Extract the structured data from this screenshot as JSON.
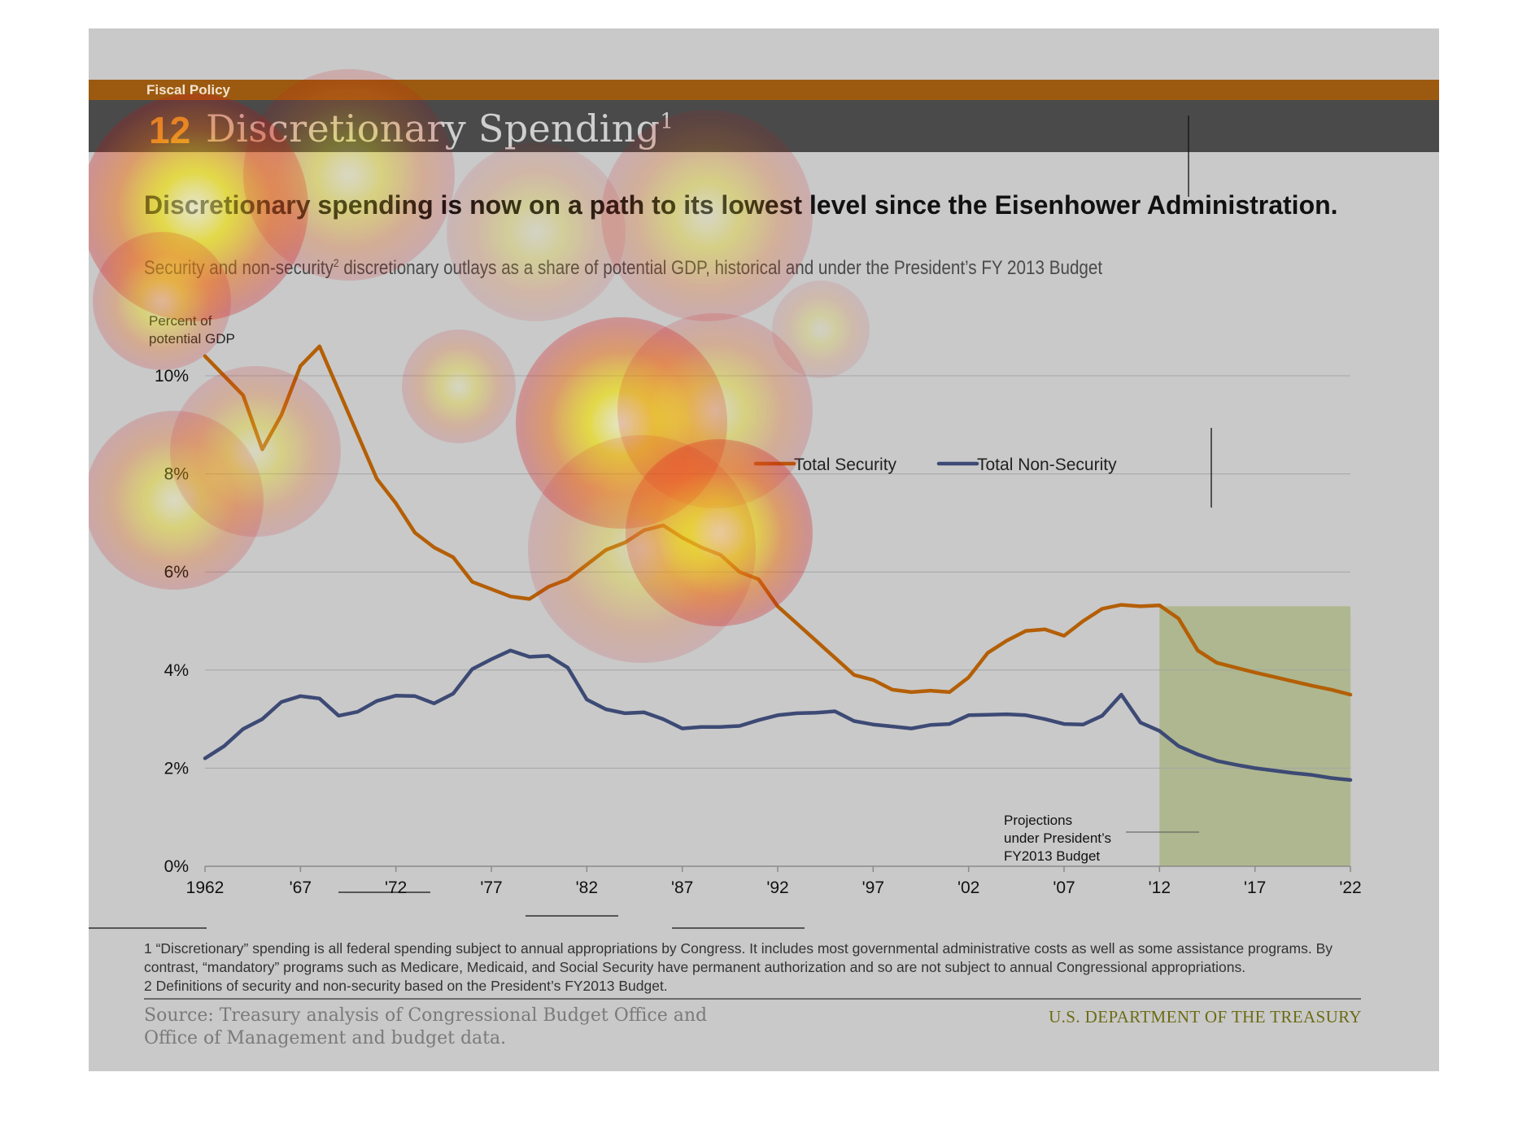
{
  "header": {
    "section": "Fiscal Policy",
    "number": "12",
    "title": "Discretionary Spending",
    "title_sup": "1"
  },
  "headline": "Discretionary spending is now on a path to its lowest level since the Eisenhower Administration.",
  "subtitle": {
    "part1": "Security and non-security",
    "sup": "2",
    "part2": " discretionary outlays as a share of potential GDP, historical and under the President’s FY 2013 Budget"
  },
  "colors": {
    "security": "#b45f06",
    "non_security": "#3d4a75",
    "projection_shade": "#aeb78f",
    "topbar": "#9c5a10",
    "titlebar": "#4a4a4a"
  },
  "chart_data": {
    "type": "line",
    "ylabel": "Percent of potential GDP",
    "ylim": [
      0,
      10
    ],
    "yticks": [
      0,
      2,
      4,
      6,
      8,
      10
    ],
    "ytick_labels": [
      "0%",
      "2%",
      "4%",
      "6%",
      "8%",
      "10%"
    ],
    "xlim": [
      1962,
      2022
    ],
    "xticks": [
      1962,
      1967,
      1972,
      1977,
      1982,
      1987,
      1992,
      1997,
      2002,
      2007,
      2012,
      2017,
      2022
    ],
    "xtick_labels": [
      "1962",
      "'67",
      "'72",
      "'77",
      "'82",
      "'87",
      "'92",
      "'97",
      "'02",
      "'07",
      "'12",
      "'17",
      "'22"
    ],
    "grid": "horizontal",
    "legend": "top-right",
    "projection": {
      "start": 2012,
      "end": 2022,
      "label": [
        "Projections",
        "under President’s",
        "FY2013 Budget"
      ]
    },
    "series": [
      {
        "name": "Total Security",
        "x": [
          1962,
          1963,
          1964,
          1965,
          1966,
          1967,
          1968,
          1969,
          1970,
          1971,
          1972,
          1973,
          1974,
          1975,
          1976,
          1977,
          1978,
          1979,
          1980,
          1981,
          1982,
          1983,
          1984,
          1985,
          1986,
          1987,
          1988,
          1989,
          1990,
          1991,
          1992,
          1993,
          1994,
          1995,
          1996,
          1997,
          1998,
          1999,
          2000,
          2001,
          2002,
          2003,
          2004,
          2005,
          2006,
          2007,
          2008,
          2009,
          2010,
          2011,
          2012,
          2013,
          2014,
          2015,
          2016,
          2017,
          2018,
          2019,
          2020,
          2021,
          2022
        ],
        "values": [
          10.4,
          10.0,
          9.6,
          8.5,
          9.2,
          10.2,
          10.6,
          9.7,
          8.8,
          7.9,
          7.4,
          6.8,
          6.5,
          6.3,
          5.8,
          5.65,
          5.5,
          5.45,
          5.7,
          5.85,
          6.15,
          6.45,
          6.6,
          6.85,
          6.95,
          6.7,
          6.5,
          6.35,
          6.0,
          5.85,
          5.3,
          4.95,
          4.6,
          4.25,
          3.9,
          3.8,
          3.6,
          3.55,
          3.58,
          3.55,
          3.85,
          4.35,
          4.6,
          4.8,
          4.83,
          4.7,
          5.0,
          5.25,
          5.33,
          5.3,
          5.32,
          5.05,
          4.4,
          4.15,
          4.05,
          3.95,
          3.86,
          3.77,
          3.68,
          3.6,
          3.5
        ]
      },
      {
        "name": "Total Non-Security",
        "x": [
          1962,
          1963,
          1964,
          1965,
          1966,
          1967,
          1968,
          1969,
          1970,
          1971,
          1972,
          1973,
          1974,
          1975,
          1976,
          1977,
          1978,
          1979,
          1980,
          1981,
          1982,
          1983,
          1984,
          1985,
          1986,
          1987,
          1988,
          1989,
          1990,
          1991,
          1992,
          1993,
          1994,
          1995,
          1996,
          1997,
          1998,
          1999,
          2000,
          2001,
          2002,
          2003,
          2004,
          2005,
          2006,
          2007,
          2008,
          2009,
          2010,
          2011,
          2012,
          2013,
          2014,
          2015,
          2016,
          2017,
          2018,
          2019,
          2020,
          2021,
          2022
        ],
        "values": [
          2.2,
          2.45,
          2.8,
          3.0,
          3.35,
          3.47,
          3.42,
          3.07,
          3.15,
          3.37,
          3.48,
          3.47,
          3.32,
          3.52,
          4.02,
          4.22,
          4.4,
          4.27,
          4.29,
          4.05,
          3.4,
          3.2,
          3.12,
          3.14,
          3.0,
          2.81,
          2.84,
          2.84,
          2.86,
          2.98,
          3.08,
          3.12,
          3.13,
          3.16,
          2.96,
          2.89,
          2.85,
          2.81,
          2.88,
          2.9,
          3.08,
          3.09,
          3.1,
          3.08,
          3.0,
          2.9,
          2.89,
          3.07,
          3.5,
          2.93,
          2.76,
          2.45,
          2.28,
          2.15,
          2.07,
          2.0,
          1.95,
          1.9,
          1.86,
          1.8,
          1.76
        ]
      }
    ]
  },
  "footnotes": [
    "1 “Discretionary” spending is all federal spending subject to annual appropriations by Congress. It includes most governmental administrative costs as well as some assistance programs. By contrast, “mandatory” programs such as Medicare, Medicaid, and Social Security have permanent authorization and so are not subject to annual Congressional appropriations.",
    "2 Definitions of security and non-security based on the President’s FY2013 Budget."
  ],
  "source": "Source: Treasury analysis of Congressional Budget Office and Office of Management and budget data.",
  "agency": "U.S. DEPARTMENT OF THE TREASURY"
}
